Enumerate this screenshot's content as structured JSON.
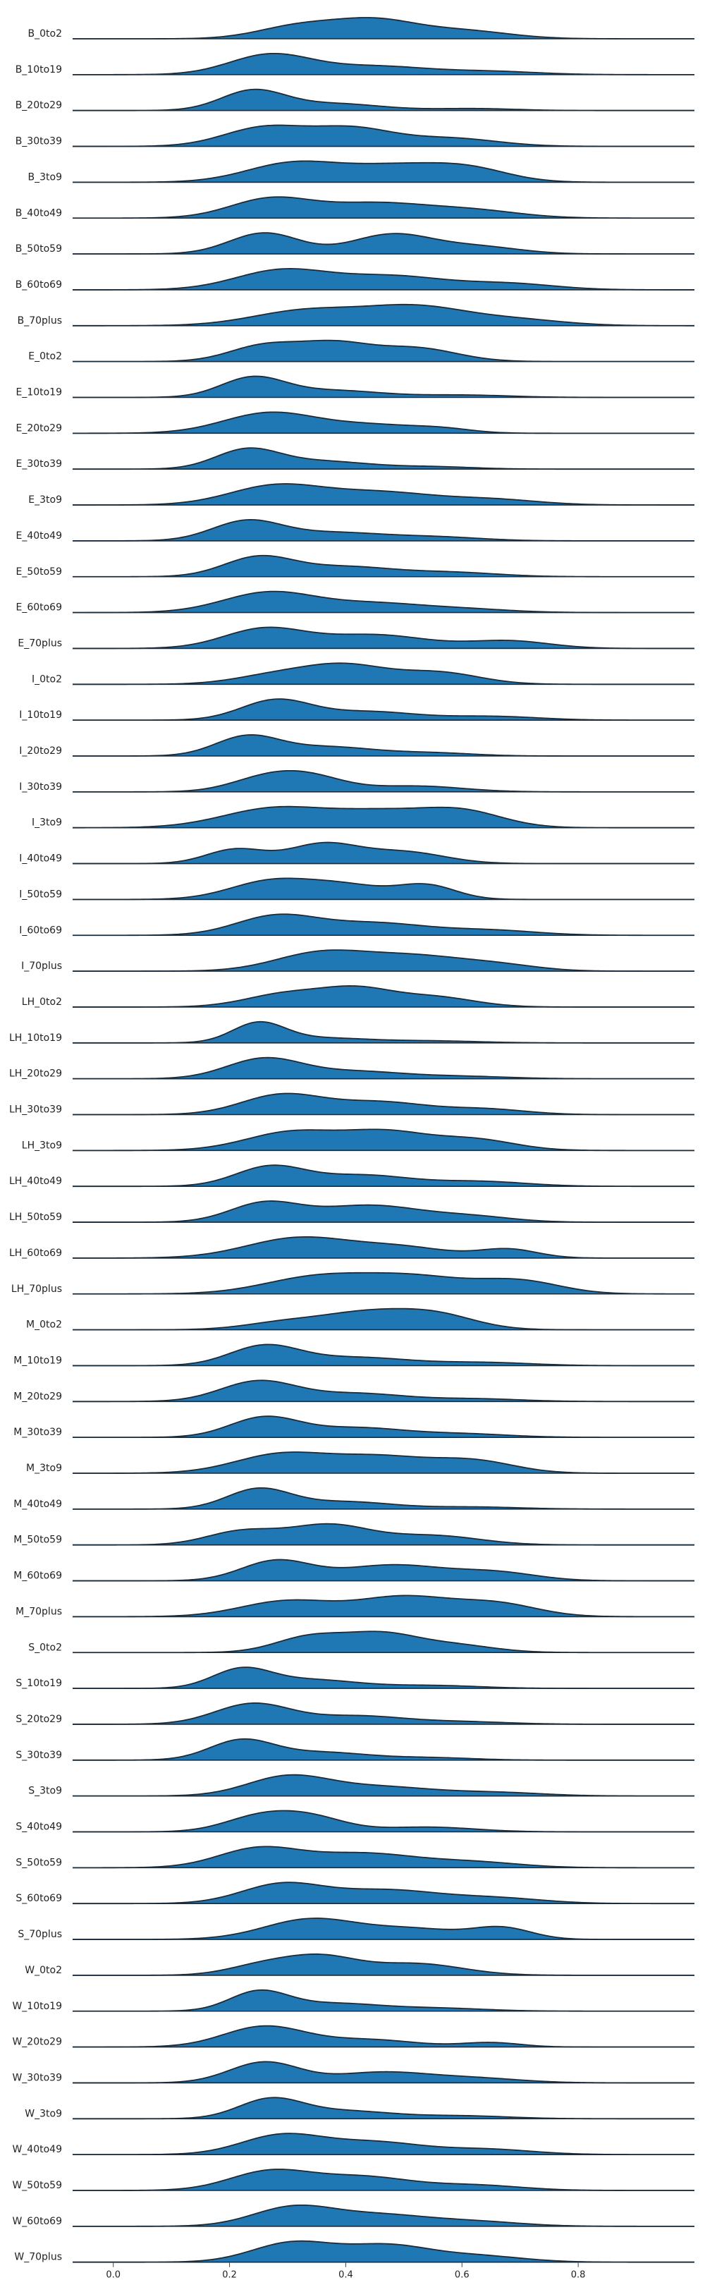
{
  "chart_data": {
    "type": "ridgeline",
    "fill_color": "#1f77b4",
    "line_color": "#1a2b3a",
    "xlim": [
      -0.07,
      1.0
    ],
    "x_ticks": [
      0.0,
      0.2,
      0.4,
      0.6,
      0.8
    ],
    "x_tick_labels": [
      "0.0",
      "0.2",
      "0.4",
      "0.6",
      "0.8"
    ],
    "grid": false,
    "series": [
      {
        "name": "B_0to2",
        "peaks": [
          [
            0.32,
            0.07,
            0.55
          ],
          [
            0.45,
            0.07,
            0.75
          ],
          [
            0.6,
            0.08,
            0.35
          ]
        ]
      },
      {
        "name": "B_10to19",
        "peaks": [
          [
            0.27,
            0.07,
            0.95
          ],
          [
            0.45,
            0.09,
            0.4
          ],
          [
            0.65,
            0.08,
            0.15
          ]
        ]
      },
      {
        "name": "B_20to29",
        "peaks": [
          [
            0.24,
            0.055,
            1.0
          ],
          [
            0.38,
            0.08,
            0.35
          ],
          [
            0.62,
            0.07,
            0.1
          ]
        ]
      },
      {
        "name": "B_30to39",
        "peaks": [
          [
            0.26,
            0.07,
            0.7
          ],
          [
            0.41,
            0.07,
            0.65
          ],
          [
            0.58,
            0.08,
            0.3
          ]
        ]
      },
      {
        "name": "B_3to9",
        "peaks": [
          [
            0.31,
            0.08,
            0.72
          ],
          [
            0.48,
            0.08,
            0.55
          ],
          [
            0.61,
            0.07,
            0.5
          ]
        ]
      },
      {
        "name": "B_40to49",
        "peaks": [
          [
            0.27,
            0.07,
            0.78
          ],
          [
            0.45,
            0.09,
            0.6
          ],
          [
            0.62,
            0.08,
            0.3
          ]
        ]
      },
      {
        "name": "B_50to59",
        "peaks": [
          [
            0.26,
            0.06,
            0.75
          ],
          [
            0.48,
            0.07,
            0.7
          ],
          [
            0.63,
            0.07,
            0.25
          ]
        ]
      },
      {
        "name": "B_60to69",
        "peaks": [
          [
            0.29,
            0.08,
            0.8
          ],
          [
            0.48,
            0.09,
            0.55
          ],
          [
            0.68,
            0.08,
            0.25
          ]
        ]
      },
      {
        "name": "B_70plus",
        "peaks": [
          [
            0.33,
            0.09,
            0.55
          ],
          [
            0.52,
            0.09,
            0.7
          ],
          [
            0.7,
            0.08,
            0.2
          ]
        ]
      },
      {
        "name": "E_0to2",
        "peaks": [
          [
            0.26,
            0.06,
            0.65
          ],
          [
            0.38,
            0.06,
            0.7
          ],
          [
            0.52,
            0.07,
            0.55
          ]
        ]
      },
      {
        "name": "E_10to19",
        "peaks": [
          [
            0.24,
            0.055,
            1.0
          ],
          [
            0.38,
            0.08,
            0.35
          ],
          [
            0.6,
            0.08,
            0.12
          ]
        ]
      },
      {
        "name": "E_20to29",
        "peaks": [
          [
            0.27,
            0.08,
            0.9
          ],
          [
            0.45,
            0.08,
            0.35
          ],
          [
            0.57,
            0.05,
            0.15
          ]
        ]
      },
      {
        "name": "E_30to39",
        "peaks": [
          [
            0.23,
            0.055,
            0.98
          ],
          [
            0.36,
            0.08,
            0.4
          ],
          [
            0.55,
            0.07,
            0.12
          ]
        ]
      },
      {
        "name": "E_3to9",
        "peaks": [
          [
            0.28,
            0.08,
            0.7
          ],
          [
            0.46,
            0.09,
            0.45
          ],
          [
            0.65,
            0.08,
            0.2
          ]
        ]
      },
      {
        "name": "E_40to49",
        "peaks": [
          [
            0.23,
            0.06,
            1.0
          ],
          [
            0.38,
            0.08,
            0.4
          ],
          [
            0.55,
            0.08,
            0.2
          ]
        ]
      },
      {
        "name": "E_50to59",
        "peaks": [
          [
            0.25,
            0.06,
            0.9
          ],
          [
            0.4,
            0.08,
            0.45
          ],
          [
            0.58,
            0.08,
            0.2
          ]
        ]
      },
      {
        "name": "E_60to69",
        "peaks": [
          [
            0.27,
            0.08,
            0.85
          ],
          [
            0.45,
            0.08,
            0.35
          ],
          [
            0.6,
            0.08,
            0.15
          ]
        ]
      },
      {
        "name": "E_70plus",
        "peaks": [
          [
            0.26,
            0.07,
            0.65
          ],
          [
            0.45,
            0.09,
            0.45
          ],
          [
            0.68,
            0.07,
            0.25
          ]
        ]
      },
      {
        "name": "I_0to2",
        "peaks": [
          [
            0.28,
            0.07,
            0.35
          ],
          [
            0.4,
            0.07,
            0.7
          ],
          [
            0.56,
            0.07,
            0.45
          ]
        ]
      },
      {
        "name": "I_10to19",
        "peaks": [
          [
            0.28,
            0.06,
            0.95
          ],
          [
            0.44,
            0.08,
            0.4
          ],
          [
            0.65,
            0.08,
            0.18
          ]
        ]
      },
      {
        "name": "I_20to29",
        "peaks": [
          [
            0.23,
            0.055,
            0.95
          ],
          [
            0.37,
            0.08,
            0.45
          ],
          [
            0.55,
            0.07,
            0.15
          ]
        ]
      },
      {
        "name": "I_30to39",
        "peaks": [
          [
            0.26,
            0.06,
            0.65
          ],
          [
            0.34,
            0.06,
            0.7
          ],
          [
            0.52,
            0.08,
            0.3
          ]
        ]
      },
      {
        "name": "I_3to9",
        "peaks": [
          [
            0.28,
            0.09,
            0.55
          ],
          [
            0.46,
            0.08,
            0.4
          ],
          [
            0.6,
            0.07,
            0.45
          ]
        ]
      },
      {
        "name": "I_40to49",
        "peaks": [
          [
            0.21,
            0.05,
            0.55
          ],
          [
            0.36,
            0.06,
            0.75
          ],
          [
            0.5,
            0.07,
            0.45
          ]
        ]
      },
      {
        "name": "I_50to59",
        "peaks": [
          [
            0.27,
            0.07,
            0.72
          ],
          [
            0.4,
            0.07,
            0.55
          ],
          [
            0.54,
            0.05,
            0.55
          ]
        ]
      },
      {
        "name": "I_60to69",
        "peaks": [
          [
            0.28,
            0.07,
            0.78
          ],
          [
            0.45,
            0.09,
            0.5
          ],
          [
            0.65,
            0.08,
            0.2
          ]
        ]
      },
      {
        "name": "I_70plus",
        "peaks": [
          [
            0.36,
            0.08,
            0.75
          ],
          [
            0.52,
            0.08,
            0.55
          ],
          [
            0.66,
            0.07,
            0.25
          ]
        ]
      },
      {
        "name": "LH_0to2",
        "peaks": [
          [
            0.3,
            0.07,
            0.6
          ],
          [
            0.42,
            0.06,
            0.72
          ],
          [
            0.55,
            0.07,
            0.45
          ]
        ]
      },
      {
        "name": "LH_10to19",
        "peaks": [
          [
            0.25,
            0.045,
            1.0
          ],
          [
            0.36,
            0.08,
            0.25
          ],
          [
            0.55,
            0.08,
            0.1
          ]
        ]
      },
      {
        "name": "LH_20to29",
        "peaks": [
          [
            0.26,
            0.065,
            0.85
          ],
          [
            0.42,
            0.08,
            0.3
          ],
          [
            0.6,
            0.08,
            0.1
          ]
        ]
      },
      {
        "name": "LH_30to39",
        "peaks": [
          [
            0.29,
            0.07,
            0.8
          ],
          [
            0.46,
            0.08,
            0.5
          ],
          [
            0.64,
            0.07,
            0.22
          ]
        ]
      },
      {
        "name": "LH_3to9",
        "peaks": [
          [
            0.31,
            0.08,
            0.6
          ],
          [
            0.47,
            0.07,
            0.55
          ],
          [
            0.62,
            0.07,
            0.35
          ]
        ]
      },
      {
        "name": "LH_40to49",
        "peaks": [
          [
            0.27,
            0.06,
            0.8
          ],
          [
            0.43,
            0.08,
            0.45
          ],
          [
            0.63,
            0.08,
            0.2
          ]
        ]
      },
      {
        "name": "LH_50to59",
        "peaks": [
          [
            0.26,
            0.06,
            0.72
          ],
          [
            0.44,
            0.09,
            0.65
          ],
          [
            0.62,
            0.07,
            0.2
          ]
        ]
      },
      {
        "name": "LH_60to69",
        "peaks": [
          [
            0.32,
            0.09,
            0.7
          ],
          [
            0.5,
            0.08,
            0.35
          ],
          [
            0.68,
            0.05,
            0.3
          ]
        ]
      },
      {
        "name": "LH_70plus",
        "peaks": [
          [
            0.35,
            0.09,
            0.4
          ],
          [
            0.52,
            0.09,
            0.4
          ],
          [
            0.7,
            0.07,
            0.3
          ]
        ]
      },
      {
        "name": "M_0to2",
        "peaks": [
          [
            0.3,
            0.07,
            0.35
          ],
          [
            0.43,
            0.07,
            0.65
          ],
          [
            0.55,
            0.07,
            0.7
          ]
        ]
      },
      {
        "name": "M_10to19",
        "peaks": [
          [
            0.26,
            0.06,
            0.95
          ],
          [
            0.42,
            0.09,
            0.4
          ],
          [
            0.64,
            0.08,
            0.15
          ]
        ]
      },
      {
        "name": "M_20to29",
        "peaks": [
          [
            0.25,
            0.065,
            0.9
          ],
          [
            0.42,
            0.08,
            0.35
          ],
          [
            0.62,
            0.08,
            0.12
          ]
        ]
      },
      {
        "name": "M_30to39",
        "peaks": [
          [
            0.26,
            0.06,
            0.85
          ],
          [
            0.42,
            0.08,
            0.4
          ],
          [
            0.6,
            0.08,
            0.15
          ]
        ]
      },
      {
        "name": "M_3to9",
        "peaks": [
          [
            0.29,
            0.08,
            0.55
          ],
          [
            0.46,
            0.08,
            0.45
          ],
          [
            0.62,
            0.07,
            0.35
          ]
        ]
      },
      {
        "name": "M_40to49",
        "peaks": [
          [
            0.25,
            0.055,
            0.95
          ],
          [
            0.4,
            0.08,
            0.35
          ],
          [
            0.62,
            0.08,
            0.1
          ]
        ]
      },
      {
        "name": "M_50to59",
        "peaks": [
          [
            0.22,
            0.06,
            0.5
          ],
          [
            0.37,
            0.07,
            0.75
          ],
          [
            0.55,
            0.08,
            0.35
          ]
        ]
      },
      {
        "name": "M_60to69",
        "peaks": [
          [
            0.28,
            0.06,
            0.75
          ],
          [
            0.48,
            0.09,
            0.6
          ],
          [
            0.66,
            0.07,
            0.3
          ]
        ]
      },
      {
        "name": "M_70plus",
        "peaks": [
          [
            0.3,
            0.08,
            0.5
          ],
          [
            0.5,
            0.08,
            0.62
          ],
          [
            0.66,
            0.07,
            0.4
          ]
        ]
      },
      {
        "name": "S_0to2",
        "peaks": [
          [
            0.34,
            0.06,
            0.7
          ],
          [
            0.46,
            0.06,
            0.75
          ],
          [
            0.58,
            0.07,
            0.35
          ]
        ]
      },
      {
        "name": "S_10to19",
        "peaks": [
          [
            0.22,
            0.05,
            0.95
          ],
          [
            0.34,
            0.08,
            0.45
          ],
          [
            0.55,
            0.08,
            0.15
          ]
        ]
      },
      {
        "name": "S_20to29",
        "peaks": [
          [
            0.24,
            0.065,
            1.0
          ],
          [
            0.42,
            0.08,
            0.4
          ],
          [
            0.6,
            0.08,
            0.12
          ]
        ]
      },
      {
        "name": "S_30to39",
        "peaks": [
          [
            0.22,
            0.055,
            1.0
          ],
          [
            0.36,
            0.08,
            0.4
          ],
          [
            0.55,
            0.07,
            0.12
          ]
        ]
      },
      {
        "name": "S_3to9",
        "peaks": [
          [
            0.3,
            0.07,
            0.85
          ],
          [
            0.46,
            0.09,
            0.4
          ],
          [
            0.66,
            0.08,
            0.15
          ]
        ]
      },
      {
        "name": "S_40to49",
        "peaks": [
          [
            0.25,
            0.06,
            0.75
          ],
          [
            0.34,
            0.06,
            0.72
          ],
          [
            0.54,
            0.08,
            0.25
          ]
        ]
      },
      {
        "name": "S_50to59",
        "peaks": [
          [
            0.25,
            0.07,
            0.7
          ],
          [
            0.43,
            0.09,
            0.52
          ],
          [
            0.62,
            0.08,
            0.2
          ]
        ]
      },
      {
        "name": "S_60to69",
        "peaks": [
          [
            0.29,
            0.07,
            0.72
          ],
          [
            0.47,
            0.09,
            0.5
          ],
          [
            0.66,
            0.08,
            0.2
          ]
        ]
      },
      {
        "name": "S_70plus",
        "peaks": [
          [
            0.34,
            0.08,
            0.7
          ],
          [
            0.52,
            0.08,
            0.35
          ],
          [
            0.67,
            0.05,
            0.38
          ]
        ]
      },
      {
        "name": "W_0to2",
        "peaks": [
          [
            0.26,
            0.06,
            0.45
          ],
          [
            0.36,
            0.06,
            0.72
          ],
          [
            0.52,
            0.08,
            0.5
          ]
        ]
      },
      {
        "name": "W_10to19",
        "peaks": [
          [
            0.25,
            0.05,
            1.0
          ],
          [
            0.38,
            0.08,
            0.4
          ],
          [
            0.56,
            0.08,
            0.15
          ]
        ]
      },
      {
        "name": "W_20to29",
        "peaks": [
          [
            0.26,
            0.07,
            0.85
          ],
          [
            0.44,
            0.08,
            0.3
          ],
          [
            0.65,
            0.05,
            0.18
          ]
        ]
      },
      {
        "name": "W_30to39",
        "peaks": [
          [
            0.26,
            0.06,
            0.9
          ],
          [
            0.46,
            0.08,
            0.45
          ],
          [
            0.62,
            0.08,
            0.2
          ]
        ]
      },
      {
        "name": "W_3to9",
        "peaks": [
          [
            0.27,
            0.055,
            1.0
          ],
          [
            0.4,
            0.08,
            0.4
          ],
          [
            0.6,
            0.08,
            0.15
          ]
        ]
      },
      {
        "name": "W_40to49",
        "peaks": [
          [
            0.29,
            0.07,
            0.72
          ],
          [
            0.45,
            0.08,
            0.45
          ],
          [
            0.64,
            0.08,
            0.2
          ]
        ]
      },
      {
        "name": "W_50to59",
        "peaks": [
          [
            0.27,
            0.07,
            0.72
          ],
          [
            0.43,
            0.08,
            0.5
          ],
          [
            0.62,
            0.08,
            0.2
          ]
        ]
      },
      {
        "name": "W_60to69",
        "peaks": [
          [
            0.31,
            0.07,
            0.8
          ],
          [
            0.46,
            0.08,
            0.45
          ],
          [
            0.62,
            0.08,
            0.2
          ]
        ]
      },
      {
        "name": "W_70plus",
        "peaks": [
          [
            0.31,
            0.07,
            0.75
          ],
          [
            0.47,
            0.07,
            0.6
          ],
          [
            0.62,
            0.08,
            0.25
          ]
        ]
      }
    ]
  }
}
